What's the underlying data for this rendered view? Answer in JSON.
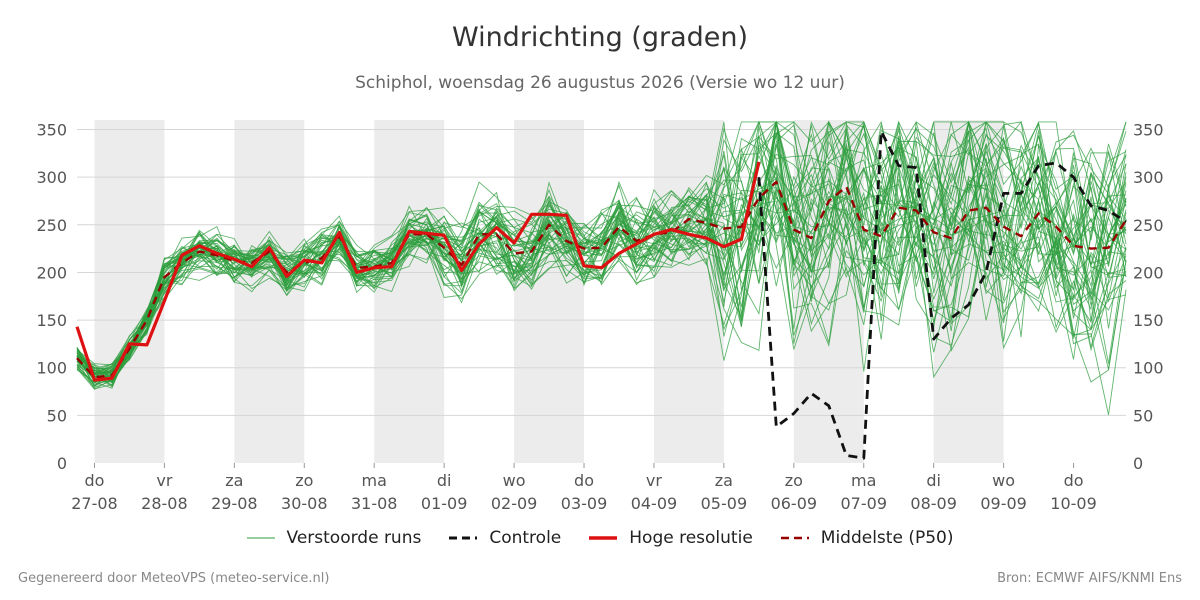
{
  "title": "Windrichting (graden)",
  "subtitle": "Schiphol, woensdag 26 augustus 2026 (Versie wo 12 uur)",
  "footer": {
    "generated": "Gegenereerd door MeteoVPS (meteo-service.nl)",
    "source": "Bron: ECMWF AIFS/KNMI Ens"
  },
  "legend": [
    {
      "label": "Verstoorde runs",
      "color": "#2e9e3e",
      "style": "thin-solid"
    },
    {
      "label": "Controle",
      "color": "#111111",
      "style": "dashed"
    },
    {
      "label": "Hoge resolutie",
      "color": "#dd1111",
      "style": "thick-solid"
    },
    {
      "label": "Middelste (P50)",
      "color": "#990000",
      "style": "dashed"
    }
  ],
  "chart_data": {
    "type": "line",
    "title": "Windrichting (graden)",
    "ylim": [
      0,
      360
    ],
    "yticks": [
      0,
      50,
      100,
      150,
      200,
      250,
      300,
      350
    ],
    "grid": true,
    "legend_position": "bottom",
    "x_unit": "days since start of 27-08",
    "xlim": [
      -0.25,
      14.75
    ],
    "day_ticks": [
      {
        "day": "do",
        "date": "27-08"
      },
      {
        "day": "vr",
        "date": "28-08"
      },
      {
        "day": "za",
        "date": "29-08"
      },
      {
        "day": "zo",
        "date": "30-08"
      },
      {
        "day": "ma",
        "date": "31-08"
      },
      {
        "day": "di",
        "date": "01-09"
      },
      {
        "day": "wo",
        "date": "02-09"
      },
      {
        "day": "do",
        "date": "03-09"
      },
      {
        "day": "vr",
        "date": "04-09"
      },
      {
        "day": "za",
        "date": "05-09"
      },
      {
        "day": "zo",
        "date": "06-09"
      },
      {
        "day": "ma",
        "date": "07-09"
      },
      {
        "day": "di",
        "date": "08-09"
      },
      {
        "day": "wo",
        "date": "09-09"
      },
      {
        "day": "do",
        "date": "10-09"
      }
    ],
    "shaded_days": [
      0,
      2,
      4,
      6,
      8,
      10,
      12
    ],
    "series": [
      {
        "name": "Hoge resolutie",
        "color": "#dd1111",
        "style": "thick-solid",
        "x": [
          -0.25,
          0,
          0.25,
          0.5,
          0.75,
          1,
          1.25,
          1.5,
          1.75,
          2,
          2.25,
          2.5,
          2.75,
          3,
          3.25,
          3.5,
          3.75,
          4,
          4.25,
          4.5,
          4.75,
          5,
          5.25,
          5.5,
          5.75,
          6,
          6.25,
          6.5,
          6.75,
          7,
          7.25,
          7.5,
          7.75,
          8,
          8.25,
          8.5,
          8.75,
          9,
          9.25,
          9.5
        ],
        "y": [
          143,
          87,
          89,
          125,
          124,
          170,
          218,
          228,
          220,
          214,
          206,
          226,
          196,
          213,
          210,
          242,
          200,
          205,
          206,
          243,
          241,
          239,
          202,
          230,
          247,
          231,
          261,
          261,
          260,
          207,
          205,
          220,
          230,
          240,
          245,
          240,
          236,
          227,
          235,
          316
        ]
      },
      {
        "name": "Controle",
        "color": "#111111",
        "style": "dashed",
        "x": [
          9.5,
          9.75,
          10,
          10.25,
          10.5,
          10.75,
          11,
          11.25,
          11.5,
          11.75,
          12,
          12.25,
          12.5,
          12.75,
          13,
          13.25,
          13.5,
          13.75,
          14,
          14.25,
          14.5,
          14.75
        ],
        "y": [
          300,
          38,
          52,
          73,
          60,
          8,
          5,
          348,
          312,
          310,
          130,
          152,
          166,
          200,
          283,
          283,
          312,
          315,
          300,
          270,
          265,
          253
        ]
      },
      {
        "name": "Middelste (P50)",
        "color": "#990000",
        "style": "dashed",
        "x": [
          -0.25,
          0,
          0.25,
          0.5,
          0.75,
          1,
          1.25,
          1.5,
          1.75,
          2,
          2.25,
          2.5,
          2.75,
          3,
          3.25,
          3.5,
          3.75,
          4,
          4.25,
          4.5,
          4.75,
          5,
          5.25,
          5.5,
          5.75,
          6,
          6.25,
          6.5,
          6.75,
          7,
          7.25,
          7.5,
          7.75,
          8,
          8.25,
          8.5,
          8.75,
          9,
          9.25,
          9.5,
          9.75,
          10,
          10.25,
          10.5,
          10.75,
          11,
          11.25,
          11.5,
          11.75,
          12,
          12.25,
          12.5,
          12.75,
          13,
          13.25,
          13.5,
          13.75,
          14,
          14.25,
          14.5,
          14.75
        ],
        "y": [
          110,
          90,
          92,
          120,
          150,
          195,
          210,
          222,
          218,
          212,
          210,
          222,
          200,
          210,
          215,
          238,
          205,
          206,
          210,
          240,
          240,
          226,
          208,
          240,
          240,
          220,
          222,
          250,
          233,
          225,
          226,
          248,
          233,
          240,
          242,
          256,
          252,
          246,
          248,
          278,
          295,
          245,
          236,
          275,
          290,
          245,
          238,
          268,
          265,
          242,
          236,
          265,
          268,
          248,
          238,
          262,
          248,
          228,
          225,
          226,
          255
        ]
      },
      {
        "name": "Verstoorde runs",
        "color": "#2e9e3e",
        "style": "thin-solid",
        "ensemble": true
      }
    ]
  }
}
